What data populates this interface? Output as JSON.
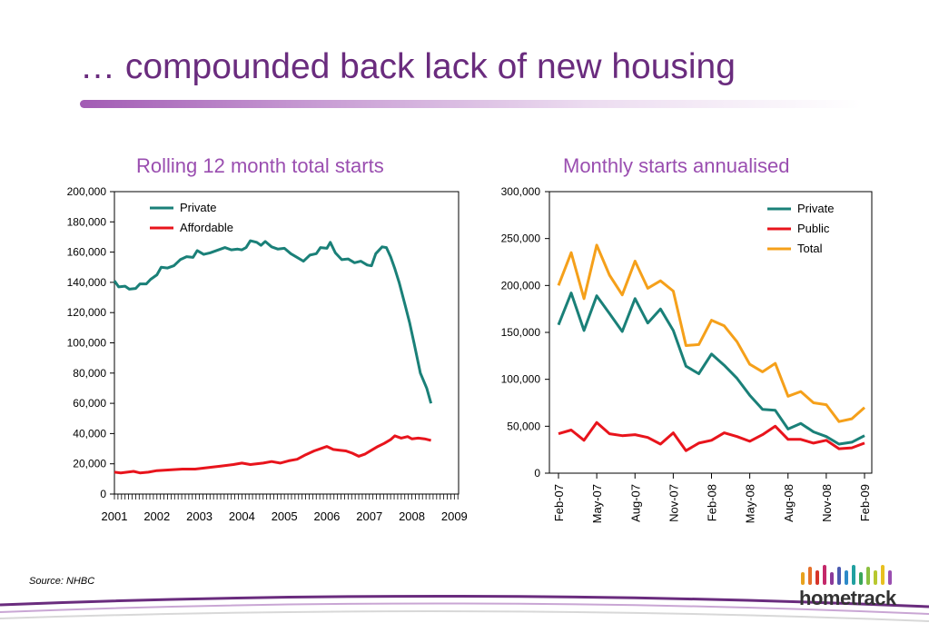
{
  "slide": {
    "title": "… compounded back lack of new housing",
    "source": "Source: NHBC",
    "logo_text": "hometrack",
    "colors": {
      "title": "#6a2c7e",
      "chart_title": "#9a4eb0"
    }
  },
  "chart_data": [
    {
      "type": "line",
      "title": "Rolling 12 month total starts",
      "xlabel": "",
      "ylabel": "",
      "ylim": [
        0,
        200000
      ],
      "y_ticks": [
        "0",
        "20,000",
        "40,000",
        "60,000",
        "80,000",
        "100,000",
        "120,000",
        "140,000",
        "160,000",
        "180,000",
        "200,000"
      ],
      "x_tick_labels": [
        "2001",
        "2002",
        "2003",
        "2004",
        "2005",
        "2006",
        "2007",
        "2008",
        "2009"
      ],
      "x_range": [
        2001,
        2009.1
      ],
      "legend_position": "top-left",
      "grid": false,
      "series": [
        {
          "name": "Private",
          "color": "#1a8078",
          "points": [
            [
              2001.0,
              141000
            ],
            [
              2001.1,
              137000
            ],
            [
              2001.25,
              137500
            ],
            [
              2001.35,
              135500
            ],
            [
              2001.5,
              136000
            ],
            [
              2001.6,
              139000
            ],
            [
              2001.75,
              139000
            ],
            [
              2001.85,
              142000
            ],
            [
              2002.0,
              145000
            ],
            [
              2002.1,
              150000
            ],
            [
              2002.25,
              149500
            ],
            [
              2002.4,
              151000
            ],
            [
              2002.55,
              155000
            ],
            [
              2002.7,
              157000
            ],
            [
              2002.85,
              156500
            ],
            [
              2002.95,
              161000
            ],
            [
              2003.1,
              158500
            ],
            [
              2003.25,
              159500
            ],
            [
              2003.4,
              161000
            ],
            [
              2003.6,
              163000
            ],
            [
              2003.75,
              161500
            ],
            [
              2003.9,
              162000
            ],
            [
              2004.0,
              161500
            ],
            [
              2004.1,
              163000
            ],
            [
              2004.2,
              167500
            ],
            [
              2004.35,
              166500
            ],
            [
              2004.45,
              164500
            ],
            [
              2004.55,
              167000
            ],
            [
              2004.7,
              163500
            ],
            [
              2004.85,
              162000
            ],
            [
              2005.0,
              162500
            ],
            [
              2005.15,
              159000
            ],
            [
              2005.3,
              156500
            ],
            [
              2005.45,
              154000
            ],
            [
              2005.6,
              158000
            ],
            [
              2005.75,
              159000
            ],
            [
              2005.85,
              163000
            ],
            [
              2006.0,
              162500
            ],
            [
              2006.08,
              166500
            ],
            [
              2006.2,
              159500
            ],
            [
              2006.35,
              155000
            ],
            [
              2006.5,
              155500
            ],
            [
              2006.65,
              153000
            ],
            [
              2006.8,
              154000
            ],
            [
              2006.95,
              151500
            ],
            [
              2007.05,
              151000
            ],
            [
              2007.15,
              159000
            ],
            [
              2007.3,
              163500
            ],
            [
              2007.4,
              163000
            ],
            [
              2007.5,
              157000
            ],
            [
              2007.6,
              149000
            ],
            [
              2007.7,
              140000
            ],
            [
              2007.85,
              124000
            ],
            [
              2007.95,
              113000
            ],
            [
              2008.05,
              100000
            ],
            [
              2008.2,
              80000
            ],
            [
              2008.35,
              70000
            ],
            [
              2008.45,
              60000
            ]
          ]
        },
        {
          "name": "Affordable",
          "color": "#e8141c",
          "points": [
            [
              2001.0,
              14500
            ],
            [
              2001.15,
              14000
            ],
            [
              2001.3,
              14500
            ],
            [
              2001.45,
              15000
            ],
            [
              2001.6,
              14000
            ],
            [
              2001.8,
              14500
            ],
            [
              2002.0,
              15500
            ],
            [
              2002.3,
              16000
            ],
            [
              2002.6,
              16500
            ],
            [
              2002.9,
              16500
            ],
            [
              2003.2,
              17500
            ],
            [
              2003.5,
              18500
            ],
            [
              2003.8,
              19500
            ],
            [
              2004.0,
              20500
            ],
            [
              2004.2,
              19500
            ],
            [
              2004.5,
              20500
            ],
            [
              2004.7,
              21500
            ],
            [
              2004.9,
              20500
            ],
            [
              2005.1,
              22000
            ],
            [
              2005.3,
              23000
            ],
            [
              2005.5,
              26000
            ],
            [
              2005.7,
              28500
            ],
            [
              2005.85,
              30000
            ],
            [
              2006.0,
              31500
            ],
            [
              2006.15,
              29500
            ],
            [
              2006.3,
              29000
            ],
            [
              2006.45,
              28500
            ],
            [
              2006.6,
              27000
            ],
            [
              2006.75,
              25000
            ],
            [
              2006.9,
              26500
            ],
            [
              2007.05,
              29000
            ],
            [
              2007.2,
              31500
            ],
            [
              2007.35,
              33500
            ],
            [
              2007.5,
              36000
            ],
            [
              2007.6,
              38500
            ],
            [
              2007.75,
              37000
            ],
            [
              2007.9,
              38000
            ],
            [
              2008.0,
              36500
            ],
            [
              2008.15,
              37000
            ],
            [
              2008.3,
              36500
            ],
            [
              2008.45,
              35500
            ]
          ]
        }
      ]
    },
    {
      "type": "line",
      "title": "Monthly starts annualised",
      "xlabel": "",
      "ylabel": "",
      "ylim": [
        0,
        300000
      ],
      "y_ticks": [
        "0",
        "50,000",
        "100,000",
        "150,000",
        "200,000",
        "250,000",
        "300,000"
      ],
      "categories": [
        "Feb-07",
        "Mar-07",
        "Apr-07",
        "May-07",
        "Jun-07",
        "Jul-07",
        "Aug-07",
        "Sep-07",
        "Oct-07",
        "Nov-07",
        "Dec-07",
        "Jan-08",
        "Feb-08",
        "Mar-08",
        "Apr-08",
        "May-08",
        "Jun-08",
        "Jul-08",
        "Aug-08",
        "Sep-08",
        "Oct-08",
        "Nov-08",
        "Dec-08",
        "Jan-09",
        "Feb-09"
      ],
      "x_tick_labels": [
        "Feb-07",
        "May-07",
        "Aug-07",
        "Nov-07",
        "Feb-08",
        "May-08",
        "Aug-08",
        "Nov-08",
        "Feb-09"
      ],
      "legend_position": "top-right",
      "grid": false,
      "series": [
        {
          "name": "Private",
          "color": "#1a8078",
          "values": [
            158000,
            192000,
            152000,
            189000,
            170000,
            151000,
            186000,
            160000,
            175000,
            152000,
            114000,
            106000,
            127000,
            115000,
            101000,
            83000,
            68000,
            67000,
            47000,
            53000,
            44000,
            39000,
            31000,
            33000,
            40000
          ]
        },
        {
          "name": "Public",
          "color": "#e8141c",
          "values": [
            42000,
            46000,
            35000,
            54000,
            42000,
            40000,
            41000,
            38000,
            31000,
            43000,
            24000,
            32000,
            35000,
            43000,
            39000,
            34000,
            41000,
            50000,
            36000,
            36000,
            32000,
            35000,
            26000,
            27000,
            32000
          ]
        },
        {
          "name": "Total",
          "color": "#f5a01a",
          "values": [
            200000,
            235000,
            186000,
            243000,
            211000,
            190000,
            226000,
            197000,
            205000,
            194000,
            136000,
            137000,
            163000,
            157000,
            140000,
            116000,
            108000,
            117000,
            82000,
            87000,
            75000,
            73000,
            55000,
            58000,
            70000
          ]
        }
      ]
    }
  ]
}
